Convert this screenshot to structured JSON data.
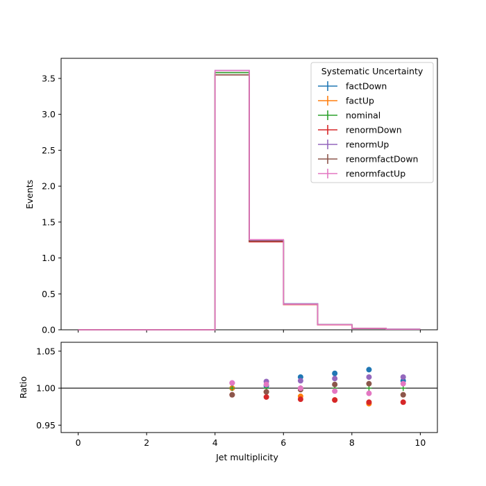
{
  "chart_data": {
    "type": "histogram-with-ratio",
    "xlabel": "Jet multiplicity",
    "main": {
      "ylabel": "Events",
      "ylim": [
        0,
        3.78
      ],
      "yticks": [
        "0.0",
        "0.5",
        "1.0",
        "1.5",
        "2.0",
        "2.5",
        "3.0",
        "3.5"
      ],
      "ytick_values": [
        0,
        0.5,
        1.0,
        1.5,
        2.0,
        2.5,
        3.0,
        3.5
      ]
    },
    "ratio": {
      "ylabel": "Ratio",
      "ylim": [
        0.94,
        1.062
      ],
      "yticks": [
        "0.95",
        "1.00",
        "1.05"
      ],
      "ytick_values": [
        0.95,
        1.0,
        1.05
      ],
      "reference_line": 1.0
    },
    "xlim": [
      -0.5,
      10.5
    ],
    "xticks": [
      "0",
      "2",
      "4",
      "6",
      "8",
      "10"
    ],
    "xtick_values": [
      0,
      2,
      4,
      6,
      8,
      10
    ],
    "bin_edges": [
      0,
      1,
      2,
      3,
      4,
      5,
      6,
      7,
      8,
      9,
      10
    ],
    "legend": {
      "title": "Systematic Uncertainty",
      "placement": "top-right"
    },
    "series": [
      {
        "name": "factDown",
        "color": "#1f77b4",
        "values": [
          0,
          0,
          0,
          0,
          3.58,
          1.245,
          0.362,
          0.072,
          0.0195,
          0.0075
        ],
        "ratio": [
          null,
          null,
          null,
          null,
          1.0,
          1.003,
          1.015,
          1.02,
          1.025,
          1.01
        ]
      },
      {
        "name": "factUp",
        "color": "#ff7f0e",
        "values": [
          0,
          0,
          0,
          0,
          3.58,
          1.235,
          0.352,
          0.0695,
          0.0187,
          0.0073
        ],
        "ratio": [
          null,
          null,
          null,
          null,
          1.0,
          0.995,
          0.989,
          0.984,
          0.979,
          0.991
        ]
      },
      {
        "name": "nominal",
        "color": "#2ca02c",
        "values": [
          0,
          0,
          0,
          0,
          3.58,
          1.24,
          0.357,
          0.0707,
          0.019,
          0.0074
        ],
        "ratio": [
          null,
          null,
          null,
          null,
          1.0,
          1.0,
          1.0,
          1.0,
          1.0,
          1.0
        ]
      },
      {
        "name": "renormDown",
        "color": "#d62728",
        "values": [
          0,
          0,
          0,
          0,
          3.55,
          1.225,
          0.352,
          0.0696,
          0.0187,
          0.0073
        ],
        "ratio": [
          null,
          null,
          null,
          null,
          0.991,
          0.988,
          0.985,
          0.984,
          0.981,
          0.981
        ]
      },
      {
        "name": "renormUp",
        "color": "#9467bd",
        "values": [
          0,
          0,
          0,
          0,
          3.61,
          1.25,
          0.361,
          0.0716,
          0.0193,
          0.0075
        ],
        "ratio": [
          null,
          null,
          null,
          null,
          1.007,
          1.009,
          1.01,
          1.013,
          1.015,
          1.015
        ]
      },
      {
        "name": "renormfactDown",
        "color": "#8c564b",
        "values": [
          0,
          0,
          0,
          0,
          3.55,
          1.235,
          0.356,
          0.071,
          0.0191,
          0.0073
        ],
        "ratio": [
          null,
          null,
          null,
          null,
          0.991,
          0.995,
          0.998,
          1.005,
          1.006,
          0.991
        ]
      },
      {
        "name": "renormfactUp",
        "color": "#e377c2",
        "values": [
          0,
          0,
          0,
          0,
          3.61,
          1.255,
          0.357,
          0.0704,
          0.0188,
          0.0074
        ],
        "ratio": [
          null,
          null,
          null,
          null,
          1.007,
          1.005,
          1.0,
          0.996,
          0.993,
          1.006
        ]
      }
    ]
  }
}
